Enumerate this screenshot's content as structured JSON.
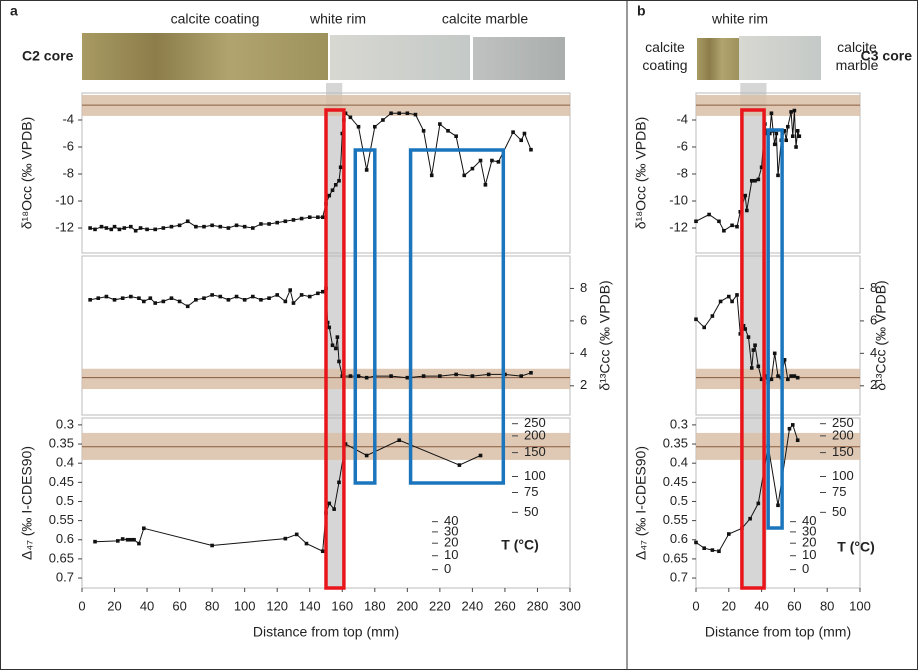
{
  "chart_data": [
    {
      "type": "line",
      "label": "a",
      "core": "C2 core",
      "segments": [
        "calcite coating",
        "white rim",
        "calcite marble"
      ],
      "xlabel": "Distance from top (mm)",
      "xlim": [
        0,
        300
      ],
      "xticks": [
        0,
        20,
        40,
        60,
        80,
        100,
        120,
        140,
        160,
        180,
        200,
        220,
        240,
        260,
        280,
        300
      ],
      "gray_band": [
        150,
        160
      ],
      "boxes": [
        {
          "color": "#e8151b",
          "x": [
            150,
            161
          ]
        },
        {
          "color": "#1b75bc",
          "x": [
            168,
            180
          ]
        },
        {
          "color": "#1b75bc",
          "x": [
            202,
            259
          ]
        }
      ],
      "subplots": [
        {
          "ylabel": "δ¹⁸Occ (‰ VPDB)",
          "side": "left",
          "ylim": [
            -13.85,
            -2
          ],
          "yticks": [
            -12,
            -10,
            -8,
            -6,
            -4
          ],
          "band": [
            -3.7,
            -2.15
          ],
          "band_line": -2.9,
          "x": [
            5,
            8,
            12,
            15,
            18,
            20,
            23,
            26,
            30,
            33,
            36,
            40,
            45,
            50,
            55,
            60,
            65,
            70,
            75,
            80,
            85,
            90,
            95,
            100,
            105,
            110,
            115,
            120,
            125,
            130,
            135,
            140,
            145,
            148,
            150,
            152,
            154,
            156,
            158,
            159,
            160,
            161,
            162,
            165,
            170,
            175,
            180,
            185,
            190,
            195,
            200,
            205,
            210,
            215,
            220,
            225,
            230,
            235,
            240,
            245,
            248,
            252,
            256,
            265,
            270,
            272,
            276
          ],
          "values": [
            -12,
            -12.1,
            -11.9,
            -12,
            -12.1,
            -11.9,
            -12.1,
            -12,
            -11.9,
            -12.2,
            -12,
            -12.1,
            -12.1,
            -12,
            -11.9,
            -11.8,
            -11.5,
            -11.9,
            -11.9,
            -11.8,
            -11.9,
            -12,
            -11.8,
            -11.9,
            -12,
            -11.7,
            -11.7,
            -11.6,
            -11.5,
            -11.4,
            -11.3,
            -11.2,
            -11.2,
            -11.2,
            -10.2,
            -9.6,
            -9.2,
            -8.8,
            -8.5,
            -7.5,
            -5,
            -4,
            -3.5,
            -3.8,
            -4.5,
            -7.7,
            -4.5,
            -4,
            -3.5,
            -3.5,
            -3.5,
            -3.6,
            -4.8,
            -8.1,
            -4.3,
            -4.8,
            -5.2,
            -8.1,
            -7.6,
            -7,
            -8.8,
            -7,
            -7.1,
            -4.9,
            -5.5,
            -5,
            -6.2
          ]
        },
        {
          "ylabel": "δ¹³Ccc (‰ VPDB)",
          "side": "right",
          "ylim": [
            0.2,
            10
          ],
          "yticks": [
            2,
            4,
            6,
            8
          ],
          "band": [
            1.8,
            3.05
          ],
          "band_line": 2.5,
          "x": [
            5,
            10,
            15,
            20,
            25,
            30,
            35,
            38,
            42,
            45,
            50,
            55,
            60,
            65,
            70,
            75,
            80,
            85,
            90,
            95,
            100,
            105,
            110,
            115,
            120,
            125,
            128,
            130,
            135,
            140,
            145,
            148,
            150,
            151,
            152,
            154,
            156,
            157,
            158,
            160,
            165,
            170,
            175,
            180,
            190,
            200,
            210,
            220,
            230,
            240,
            250,
            260,
            270,
            276
          ],
          "values": [
            7.3,
            7.4,
            7.5,
            7.3,
            7.4,
            7.5,
            7.4,
            7.2,
            7.4,
            7.1,
            7.2,
            7.4,
            7.2,
            6.9,
            7.3,
            7.4,
            7.6,
            7.5,
            7.3,
            7.5,
            7.3,
            7.5,
            7.3,
            7.4,
            7.6,
            7.2,
            7.9,
            7.1,
            7.6,
            7.5,
            7.7,
            7.8,
            8,
            5.9,
            5.6,
            4.5,
            4.3,
            5,
            3.5,
            2.6,
            2.6,
            2.6,
            2.5,
            2.6,
            2.6,
            2.5,
            2.6,
            2.6,
            2.7,
            2.6,
            2.7,
            2.7,
            2.6,
            2.8
          ]
        },
        {
          "ylabel": "Δ₄₇ (‰ I-CDES90)",
          "side": "left",
          "ylim": [
            0.726,
            0.282
          ],
          "yticks": [
            0.3,
            0.35,
            0.4,
            0.45,
            0.5,
            0.55,
            0.6,
            0.65,
            0.7
          ],
          "band": [
            0.3915,
            0.321
          ],
          "band_line": 0.357,
          "t_label": "T (°C)",
          "t_ticks": [
            250,
            200,
            150,
            100,
            75,
            50,
            40,
            30,
            20,
            10,
            0
          ],
          "x": [
            8,
            22,
            25,
            28,
            30,
            32,
            35,
            38,
            80,
            125,
            132,
            138,
            148,
            150,
            152,
            155,
            158,
            162,
            175,
            195,
            232,
            245
          ],
          "values": [
            0.605,
            0.603,
            0.598,
            0.6,
            0.6,
            0.6,
            0.61,
            0.57,
            0.615,
            0.597,
            0.586,
            0.61,
            0.63,
            0.53,
            0.505,
            0.52,
            0.45,
            0.35,
            0.38,
            0.34,
            0.405,
            0.38
          ]
        }
      ]
    },
    {
      "type": "line",
      "label": "b",
      "core": "C3 core",
      "segments": [
        "calcite coating",
        "white rim",
        "calcite marble"
      ],
      "xlabel": "Distance from top (mm)",
      "xlim": [
        0,
        100
      ],
      "xticks": [
        0,
        20,
        40,
        60,
        80,
        100
      ],
      "gray_band": [
        27,
        43
      ],
      "boxes": [
        {
          "color": "#e8151b",
          "x": [
            28,
            41.5
          ]
        },
        {
          "color": "#1b75bc",
          "x": [
            44,
            52.5
          ]
        }
      ],
      "subplots": [
        {
          "ylabel": "δ¹⁸Occ (‰ VPDB)",
          "side": "left",
          "ylim": [
            -13.85,
            -2
          ],
          "yticks": [
            -12,
            -10,
            -8,
            -6,
            -4
          ],
          "band": [
            -3.7,
            -2.15
          ],
          "band_line": -2.9,
          "x": [
            0,
            8,
            14,
            17,
            22,
            25,
            27,
            30,
            31,
            34,
            36,
            38,
            40,
            42,
            43,
            44,
            45,
            46,
            47,
            48,
            49,
            50,
            52,
            54,
            55,
            56,
            58,
            59,
            60,
            61,
            62,
            63
          ],
          "values": [
            -11.5,
            -11,
            -11.5,
            -12.2,
            -11.8,
            -11.9,
            -10.8,
            -9.6,
            -10.7,
            -8.5,
            -8.5,
            -8.4,
            -7.5,
            -4.3,
            -5,
            -4.8,
            -5,
            -3.5,
            -4.8,
            -5.8,
            -5,
            -8.1,
            -5.5,
            -4.8,
            -5.5,
            -4.5,
            -3.4,
            -5.2,
            -3.3,
            -6,
            -4.8,
            -5.2
          ]
        },
        {
          "ylabel": "δ¹³Ccc (‰ VPDB)",
          "side": "right",
          "ylim": [
            0.2,
            10
          ],
          "yticks": [
            2,
            4,
            6,
            8
          ],
          "band": [
            1.8,
            3.05
          ],
          "band_line": 2.5,
          "x": [
            0,
            5,
            10,
            15,
            20,
            22,
            25,
            27,
            29,
            30,
            32,
            34,
            35,
            36,
            38,
            40,
            42,
            44,
            46,
            48,
            50,
            52,
            54,
            56,
            58,
            60,
            62
          ],
          "values": [
            6.1,
            5.6,
            6.3,
            7.2,
            7.5,
            7.2,
            7.6,
            5.2,
            5.7,
            5.5,
            5,
            3.1,
            4.2,
            4.5,
            3.2,
            2.4,
            2.6,
            2.2,
            2.4,
            4,
            2.6,
            2.5,
            3.6,
            2.4,
            2.6,
            2.6,
            2.5
          ]
        },
        {
          "ylabel": "Δ₄₇ (‰ I-CDES90)",
          "side": "left",
          "ylim": [
            0.726,
            0.282
          ],
          "yticks": [
            0.3,
            0.35,
            0.4,
            0.45,
            0.5,
            0.55,
            0.6,
            0.65,
            0.7
          ],
          "band": [
            0.3915,
            0.321
          ],
          "band_line": 0.357,
          "t_label": "T (°C)",
          "t_ticks": [
            250,
            200,
            150,
            100,
            75,
            50,
            40,
            30,
            20,
            10,
            0
          ],
          "x": [
            0,
            5,
            10,
            14,
            20,
            28,
            33,
            38,
            44,
            50,
            57,
            59,
            62
          ],
          "values": [
            0.607,
            0.622,
            0.627,
            0.63,
            0.585,
            0.57,
            0.545,
            0.505,
            0.355,
            0.51,
            0.31,
            0.3,
            0.34
          ]
        }
      ]
    }
  ]
}
